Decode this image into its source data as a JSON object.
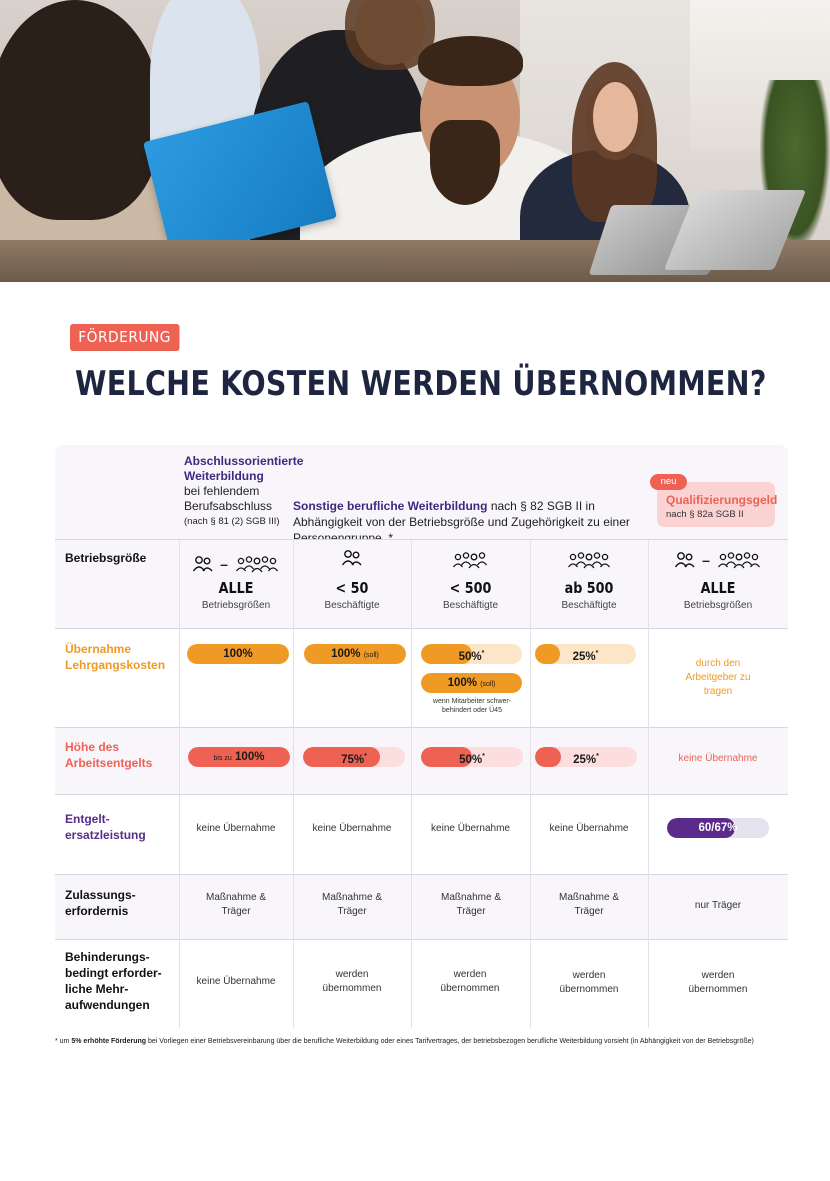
{
  "tag": "FÖRDERUNG",
  "title": "WELCHE KOSTEN WERDEN ÜBERNOMMEN?",
  "header": {
    "abschluss": {
      "title": "Abschlussorientierte Weiterbildung",
      "subtitle": "bei fehlendem Berufsabschluss",
      "ref": "(nach § 81 (2) SGB III)"
    },
    "sonstige": {
      "title": "Sonstige berufliche Weiterbildung",
      "text": "nach § 82 SGB II in Abhängigkeit von der Betriebsgröße und Zugehörigkeit zu einer Personengruppe. *"
    },
    "quali": {
      "badge": "neu",
      "title": "Qualifizierungsgeld",
      "ref": "nach § 82a SGB II"
    }
  },
  "rows": {
    "betriebsgroesse": "Betriebsgröße",
    "lehrgang": "Übernahme Lehrgangskosten",
    "arbeitsentgelt": "Höhe des Arbeitsentgelts",
    "entgelt": "Entgelt-ersatzleistung",
    "zulassung": "Zulassungs-erfordernis",
    "behinderung": "Behinderungs-bedingt erforder-liche Mehr-aufwendungen"
  },
  "sizes": [
    {
      "big": "ALLE",
      "small": "Betriebsgrößen",
      "icons": "people-range-icon"
    },
    {
      "big": "< 50",
      "small": "Beschäftigte",
      "icons": "two-people-icon"
    },
    {
      "big": "< 500",
      "small": "Beschäftigte",
      "icons": "four-people-icon"
    },
    {
      "big": "ab 500",
      "small": "Beschäftigte",
      "icons": "five-people-icon"
    },
    {
      "big": "ALLE",
      "small": "Betriebsgrößen",
      "icons": "people-range-icon"
    }
  ],
  "lehrgang": {
    "c1": {
      "value": 100,
      "label": "100%"
    },
    "c2": {
      "value": 100,
      "label": "100%",
      "suffix": "(soll)"
    },
    "c3a": {
      "value": 50,
      "label": "50%",
      "mark": "*"
    },
    "c3b": {
      "value": 100,
      "label": "100%",
      "suffix": "(soll)"
    },
    "c3note": "wenn Mitarbeiter schwer-behindert oder Ü45",
    "c4": {
      "value": 25,
      "label": "25%",
      "mark": "*"
    },
    "c5": "durch den Arbeitgeber zu tragen"
  },
  "arbeitsentgelt": {
    "c1": {
      "value": 100,
      "label": "100%",
      "prefix": "bis zu"
    },
    "c2": {
      "value": 75,
      "label": "75%",
      "mark": "*"
    },
    "c3": {
      "value": 50,
      "label": "50%",
      "mark": "*"
    },
    "c4": {
      "value": 25,
      "label": "25%",
      "mark": "*"
    },
    "c5": "keine Übernahme"
  },
  "entgelt": {
    "c1": "keine Übernahme",
    "c2": "keine Übernahme",
    "c3": "keine Übernahme",
    "c4": "keine Übernahme",
    "c5": {
      "value": 67,
      "label": "60/67%"
    }
  },
  "zulassung": {
    "c1": "Maßnahme & Träger",
    "c2": "Maßnahme & Träger",
    "c3": "Maßnahme & Träger",
    "c4": "Maßnahme & Träger",
    "c5": "nur Träger"
  },
  "behinderung": {
    "c1": "keine Übernahme",
    "c2": "werden übernommen",
    "c3": "werden übernommen",
    "c4": "werden übernommen",
    "c5": "werden übernommen"
  },
  "footnote": {
    "star": "* um",
    "bold": "5% erhöhte Förderung",
    "text": "bei Vorliegen einer Betriebsvereinbarung über die berufliche Weiterbildung oder eines Tarifvertrages, der betriebsbezogen berufliche Weiterbildung vorsieht (in Abhängigkeit von der Betriebsgröße)"
  },
  "colors": {
    "orange": "#ef9a24",
    "red": "#ee6254",
    "purple": "#5a2b8a",
    "navy": "#1e2540"
  }
}
